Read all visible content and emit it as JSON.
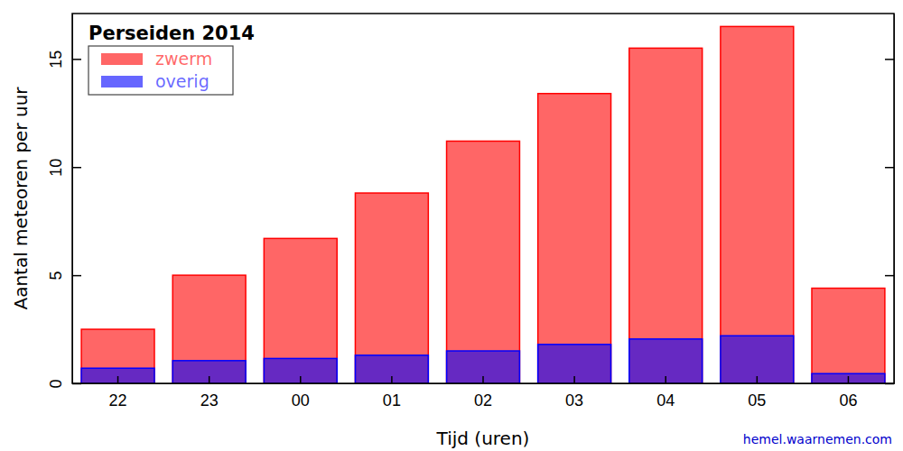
{
  "chart_data": {
    "type": "bar",
    "title": "Perseiden 2014",
    "x_label": "Tijd (uren)",
    "y_label": "Aantal meteoren per uur",
    "source": "hemel.waarnemen.com",
    "categories": [
      "22",
      "23",
      "00",
      "01",
      "02",
      "03",
      "04",
      "05",
      "06"
    ],
    "series": [
      {
        "name": "zwerm",
        "color": "#ff0000",
        "values": [
          2.5,
          5.0,
          6.7,
          8.8,
          11.2,
          13.4,
          15.5,
          16.5,
          4.4
        ]
      },
      {
        "name": "overig",
        "color": "#0000ff",
        "values": [
          0.7,
          1.05,
          1.15,
          1.3,
          1.5,
          1.8,
          2.05,
          2.2,
          0.45
        ]
      }
    ],
    "ylim": [
      0,
      17.1
    ],
    "yticks": [
      0,
      5,
      10,
      15
    ],
    "stacked": false,
    "legend": "upper left",
    "grid": false
  }
}
